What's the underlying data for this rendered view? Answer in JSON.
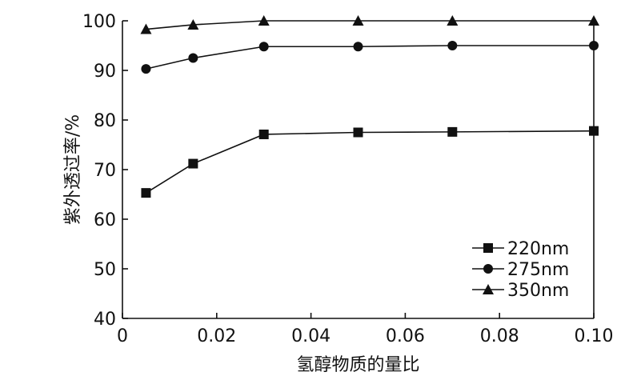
{
  "chart_data": {
    "type": "line",
    "xlabel": "氢醇物质的量比",
    "ylabel": "紫外透过率/%",
    "xlim": [
      0,
      0.1
    ],
    "ylim": [
      40,
      100
    ],
    "xticks": [
      0,
      0.02,
      0.04,
      0.06,
      0.08,
      0.1
    ],
    "xtick_labels": [
      "0",
      "0.02",
      "0.04",
      "0.06",
      "0.08",
      "0.10"
    ],
    "yticks": [
      40,
      50,
      60,
      70,
      80,
      90,
      100
    ],
    "ytick_labels": [
      "40",
      "50",
      "60",
      "70",
      "80",
      "90",
      "100"
    ],
    "grid": false,
    "legend_position": "bottom-right",
    "x": [
      0.005,
      0.015,
      0.03,
      0.05,
      0.07,
      0.1
    ],
    "series": [
      {
        "name": "220nm",
        "marker": "square",
        "values": [
          65.3,
          71.2,
          77.1,
          77.5,
          77.6,
          77.8
        ]
      },
      {
        "name": "275nm",
        "marker": "circle",
        "values": [
          90.3,
          92.5,
          94.8,
          94.8,
          95.0,
          95.0
        ]
      },
      {
        "name": "350nm",
        "marker": "triangle",
        "values": [
          98.3,
          99.2,
          100.0,
          100.0,
          100.0,
          100.0
        ]
      }
    ],
    "colors": {
      "line": "#111111",
      "marker": "#111111",
      "axis": "#111111"
    }
  }
}
